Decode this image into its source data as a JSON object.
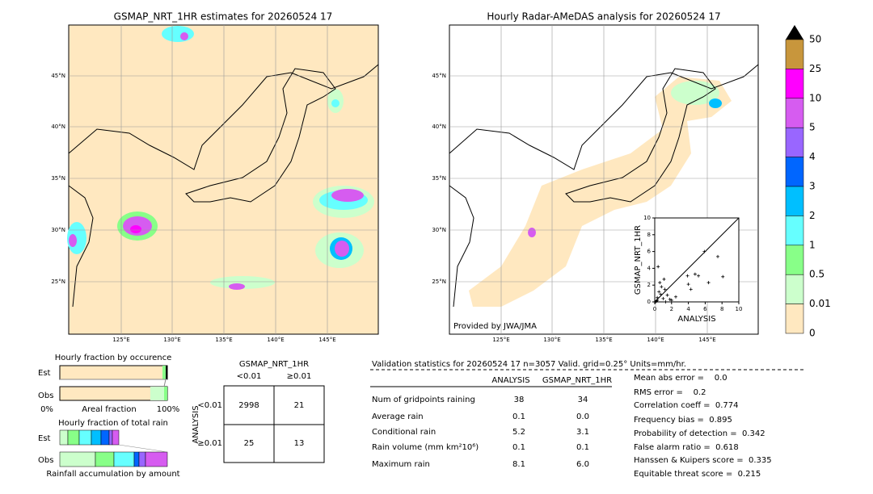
{
  "left_map": {
    "title": "GSMAP_NRT_1HR estimates for 20260524 17",
    "lat_labels": [
      "45°N",
      "40°N",
      "35°N",
      "30°N",
      "25°N"
    ],
    "lon_labels": [
      "125°E",
      "130°E",
      "135°E",
      "140°E",
      "145°E"
    ]
  },
  "right_map": {
    "title": "Hourly Radar-AMeDAS analysis for 20260524 17",
    "lat_labels": [
      "45°N",
      "40°N",
      "35°N",
      "30°N",
      "25°N"
    ],
    "lon_labels": [
      "125°E",
      "130°E",
      "135°E",
      "140°E",
      "145°E"
    ],
    "credit": "Provided by JWA/JMA"
  },
  "colorbar": {
    "labels": [
      "50",
      "25",
      "10",
      "5",
      "4",
      "3",
      "2",
      "1",
      "0.5",
      "0.01",
      "0"
    ],
    "colors": [
      "#c8963c",
      "#ff00ff",
      "#d65cf0",
      "#9966ff",
      "#0066ff",
      "#00bfff",
      "#66ffff",
      "#88ff88",
      "#ccffcc",
      "#ffe8c0"
    ]
  },
  "chart_data": {
    "type": "scatter",
    "xlabel": "ANALYSIS",
    "ylabel": "GSMAP_NRT_1HR",
    "xlim": [
      0,
      10
    ],
    "ylim": [
      0,
      10
    ],
    "xticks": [
      0,
      2,
      4,
      6,
      8,
      10
    ],
    "yticks": [
      0,
      2,
      4,
      6,
      8,
      10
    ],
    "x": [
      0.1,
      0.2,
      0.3,
      0.3,
      0.5,
      0.6,
      0.8,
      1.0,
      1.2,
      1.3,
      1.5,
      1.8,
      2.0,
      2.5,
      0.4,
      3.9,
      4.0,
      4.3,
      4.8,
      5.2,
      5.9,
      6.4,
      7.5,
      8.1,
      0.7,
      1.1
    ],
    "y": [
      0,
      0.1,
      0.5,
      0.2,
      1.2,
      2.3,
      1.8,
      0.4,
      1.5,
      0,
      0.8,
      0.3,
      0.2,
      0.6,
      4.2,
      3.1,
      2.1,
      1.5,
      3.3,
      3.1,
      6.0,
      2.3,
      5.4,
      3.0,
      0.9,
      2.7
    ],
    "color": "#000000"
  },
  "fraction_occurrence": {
    "title": "Hourly fraction by occurence",
    "rows": [
      "Est",
      "Obs"
    ],
    "axis_left": "0%",
    "axis_label": "Areal fraction",
    "axis_right": "100%"
  },
  "fraction_total": {
    "title": "Hourly fraction of total rain",
    "rows": [
      "Est",
      "Obs"
    ],
    "footer": "Rainfall accumulation by amount"
  },
  "contingency": {
    "title": "GSMAP_NRT_1HR",
    "columns": [
      "<0.01",
      "≥0.01"
    ],
    "side_label": "ANALYSIS",
    "rows": [
      {
        "label": "<0.01",
        "cells": [
          2998,
          21
        ]
      },
      {
        "label": "≥0.01",
        "cells": [
          25,
          13
        ]
      }
    ]
  },
  "validation": {
    "header": "Validation statistics for 20260524 17  n=3057 Valid. grid=0.25° Units=mm/hr.",
    "columns": [
      "ANALYSIS",
      "GSMAP_NRT_1HR"
    ],
    "rows": [
      [
        "Num of gridpoints raining",
        "38",
        "34"
      ],
      [
        "Average rain",
        "0.1",
        "0.0"
      ],
      [
        "Conditional rain",
        "5.2",
        "3.1"
      ],
      [
        "Rain volume (mm km²10⁶)",
        "0.1",
        "0.1"
      ],
      [
        "Maximum rain",
        "8.1",
        "6.0"
      ]
    ],
    "scores": [
      "Mean abs error =    0.0",
      "RMS error =    0.2",
      "Correlation coeff =  0.774",
      "Frequency bias =  0.895",
      "Probability of detection =  0.342",
      "False alarm ratio =  0.618",
      "Hanssen & Kuipers score =  0.335",
      "Equitable threat score =  0.215"
    ]
  }
}
